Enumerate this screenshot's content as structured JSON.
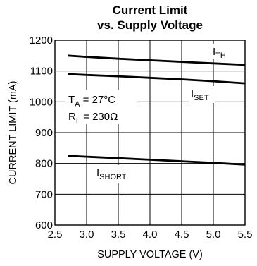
{
  "chart_data": {
    "type": "line",
    "title_line1": "Current Limit",
    "title_line2": "vs. Supply Voltage",
    "xlabel": "SUPPLY VOLTAGE (V)",
    "ylabel": "CURRENT LIMIT (mA)",
    "xlim": [
      2.5,
      5.5
    ],
    "ylim": [
      600,
      1200
    ],
    "x_ticks": [
      "2.5",
      "3.0",
      "3.5",
      "4.0",
      "4.5",
      "5.0",
      "5.5"
    ],
    "y_ticks": [
      "600",
      "700",
      "800",
      "900",
      "1000",
      "1100",
      "1200"
    ],
    "grid": true,
    "conditions": {
      "temperature": {
        "var": "T",
        "sub": "A",
        "value": " = 27°C"
      },
      "load": {
        "var": "R",
        "sub": "L",
        "value": " = 230Ω"
      }
    },
    "series": [
      {
        "name": "I_TH",
        "label_main": "I",
        "label_sub": "TH",
        "x": [
          2.7,
          3.0,
          3.5,
          4.0,
          4.5,
          5.0,
          5.5
        ],
        "y": [
          1150,
          1146,
          1140,
          1135,
          1130,
          1125,
          1120
        ]
      },
      {
        "name": "I_SET",
        "label_main": "I",
        "label_sub": "SET",
        "x": [
          2.7,
          3.0,
          3.5,
          4.0,
          4.5,
          5.0,
          5.5
        ],
        "y": [
          1090,
          1087,
          1083,
          1078,
          1073,
          1067,
          1060
        ]
      },
      {
        "name": "I_SHORT",
        "label_main": "I",
        "label_sub": "SHORT",
        "x": [
          2.7,
          3.0,
          3.5,
          4.0,
          4.5,
          5.0,
          5.5
        ],
        "y": [
          825,
          822,
          817,
          812,
          807,
          802,
          796
        ]
      }
    ]
  }
}
